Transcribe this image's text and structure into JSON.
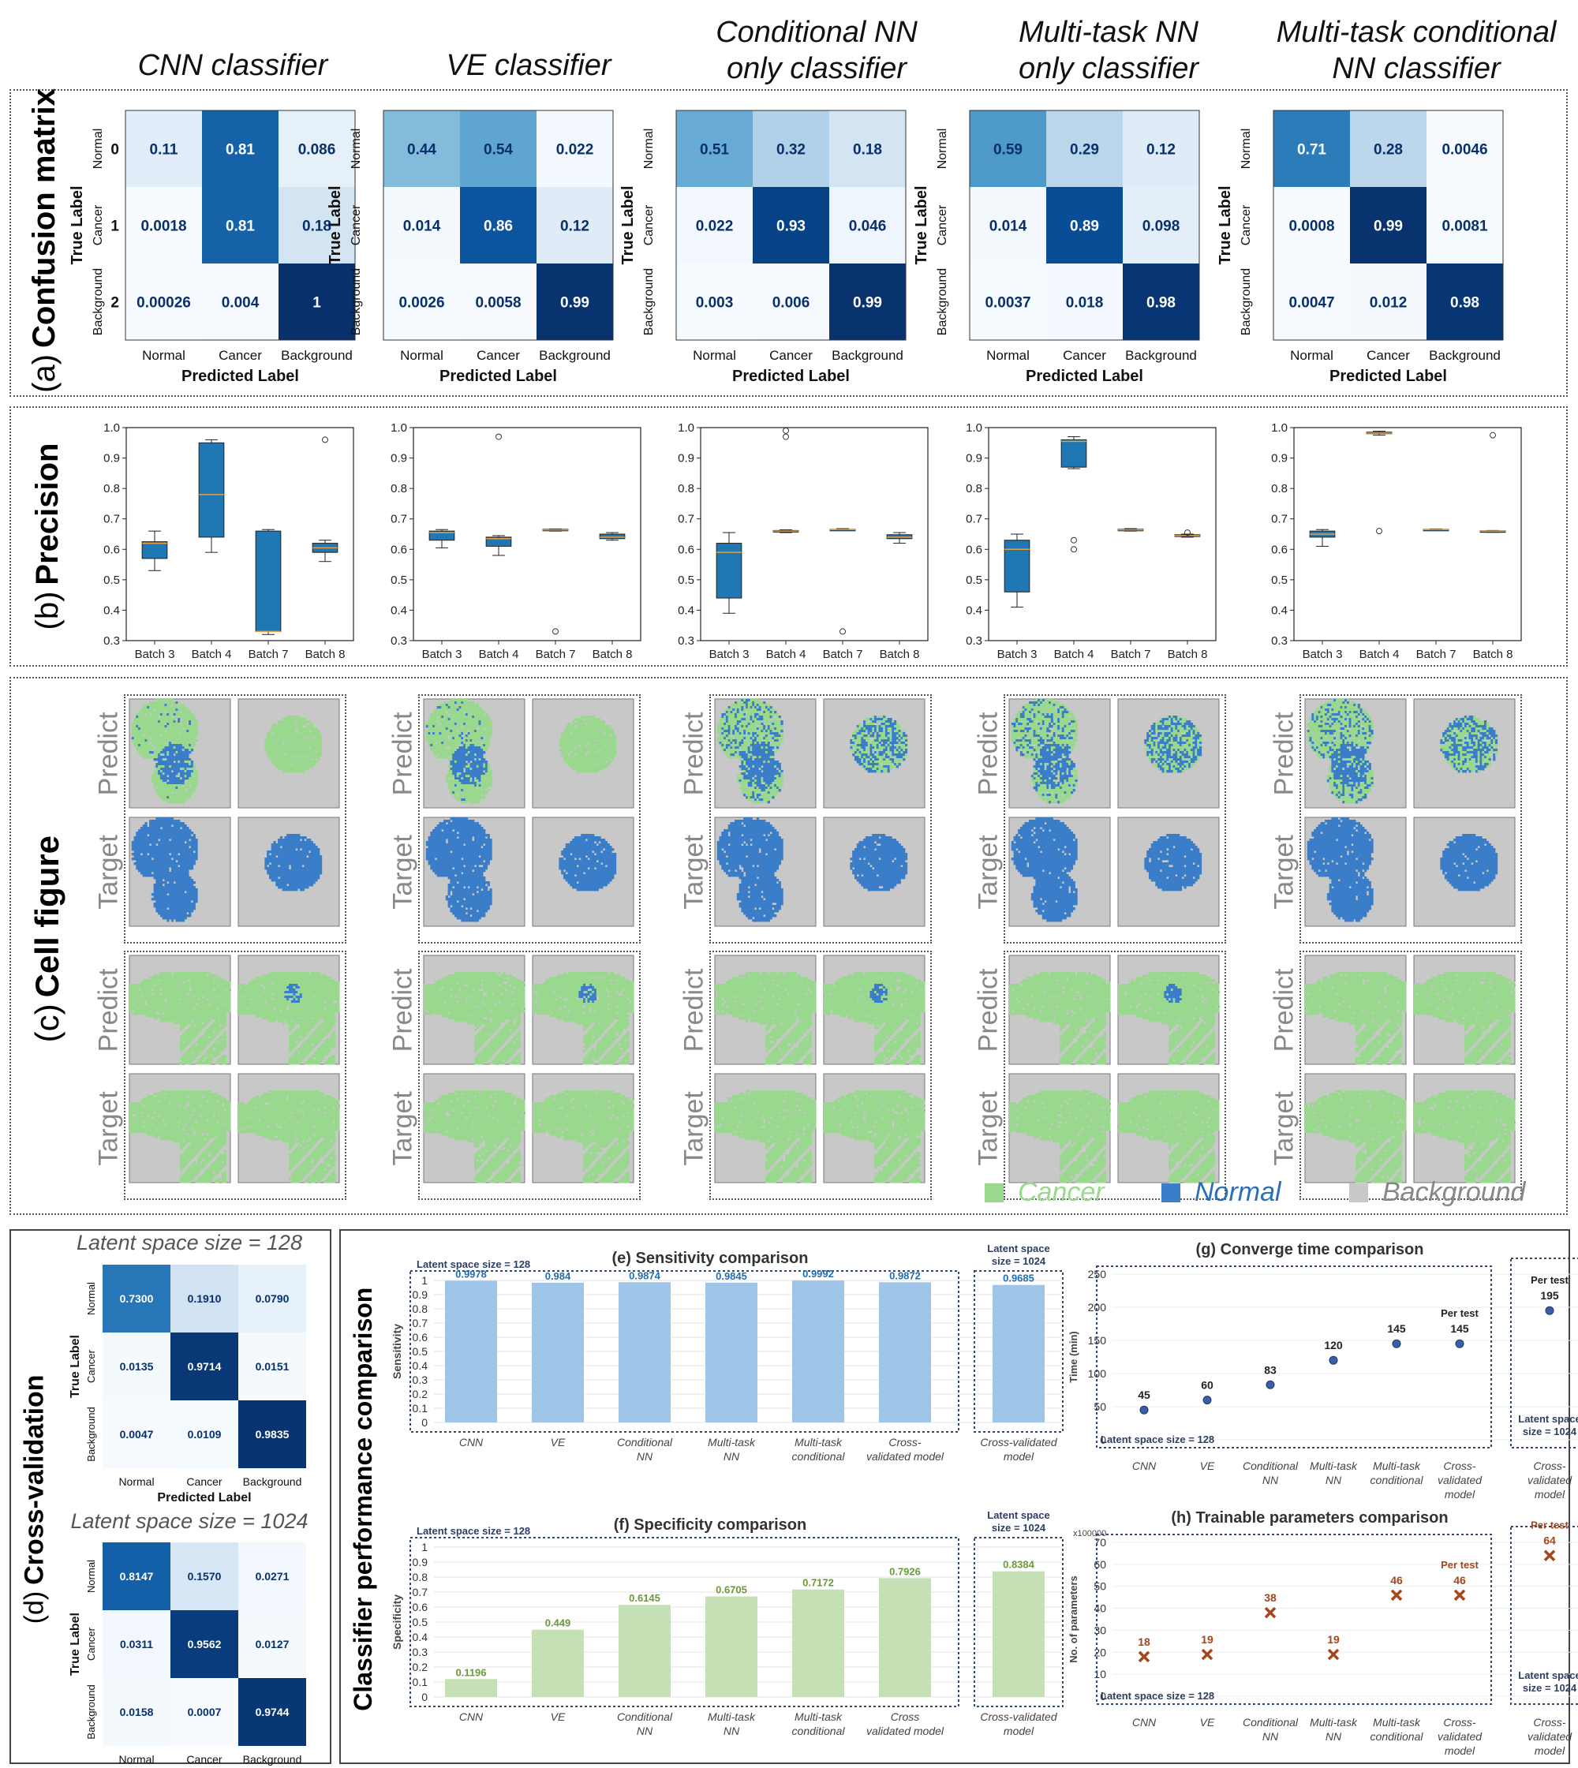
{
  "columns": [
    {
      "title_l1": "CNN classifier",
      "title_l2": ""
    },
    {
      "title_l1": "VE classifier",
      "title_l2": ""
    },
    {
      "title_l1": "Conditional NN",
      "title_l2": "only classifier"
    },
    {
      "title_l1": "Multi-task NN",
      "title_l2": "only classifier"
    },
    {
      "title_l1": "Multi-task conditional",
      "title_l2": "NN classifier"
    }
  ],
  "panel_a": {
    "letter": "(a)",
    "title": "Confusion matrix",
    "row_classes": [
      "Normal",
      "Cancer",
      "Background"
    ],
    "row_indices": [
      "0",
      "1",
      "2"
    ],
    "col_classes": [
      "Normal",
      "Cancer",
      "Background"
    ],
    "xlabel": "Predicted Label",
    "ylabel": "True Label",
    "matrices": [
      [
        [
          "0.11",
          "0.81",
          "0.086"
        ],
        [
          "0.0018",
          "0.81",
          "0.18"
        ],
        [
          "0.00026",
          "0.004",
          "1"
        ]
      ],
      [
        [
          "0.44",
          "0.54",
          "0.022"
        ],
        [
          "0.014",
          "0.86",
          "0.12"
        ],
        [
          "0.0026",
          "0.0058",
          "0.99"
        ]
      ],
      [
        [
          "0.51",
          "0.32",
          "0.18"
        ],
        [
          "0.022",
          "0.93",
          "0.046"
        ],
        [
          "0.003",
          "0.006",
          "0.99"
        ]
      ],
      [
        [
          "0.59",
          "0.29",
          "0.12"
        ],
        [
          "0.014",
          "0.89",
          "0.098"
        ],
        [
          "0.0037",
          "0.018",
          "0.98"
        ]
      ],
      [
        [
          "0.71",
          "0.28",
          "0.0046"
        ],
        [
          "0.0008",
          "0.99",
          "0.0081"
        ],
        [
          "0.0047",
          "0.012",
          "0.98"
        ]
      ]
    ]
  },
  "panel_b": {
    "letter": "(b)",
    "title": "Precision",
    "chart_data": {
      "type": "box",
      "categories": [
        "Batch 3",
        "Batch 4",
        "Batch 7",
        "Batch 8"
      ],
      "yticks": [
        "1.0",
        "0.9",
        "0.8",
        "0.7",
        "0.6",
        "0.5",
        "0.4",
        "0.3"
      ],
      "ylim": [
        0.3,
        1.0
      ],
      "models": [
        {
          "name": "CNN classifier",
          "boxes": [
            {
              "min": 0.53,
              "q1": 0.57,
              "median": 0.62,
              "q3": 0.625,
              "max": 0.66,
              "outliers": []
            },
            {
              "min": 0.59,
              "q1": 0.64,
              "median": 0.78,
              "q3": 0.95,
              "max": 0.96,
              "outliers": []
            },
            {
              "min": 0.32,
              "q1": 0.33,
              "median": 0.33,
              "q3": 0.66,
              "max": 0.665,
              "outliers": []
            },
            {
              "min": 0.56,
              "q1": 0.59,
              "median": 0.605,
              "q3": 0.62,
              "max": 0.63,
              "outliers": [
                0.96
              ]
            }
          ]
        },
        {
          "name": "VE classifier",
          "boxes": [
            {
              "min": 0.605,
              "q1": 0.63,
              "median": 0.655,
              "q3": 0.66,
              "max": 0.665,
              "outliers": []
            },
            {
              "min": 0.58,
              "q1": 0.61,
              "median": 0.635,
              "q3": 0.64,
              "max": 0.645,
              "outliers": [
                0.97
              ]
            },
            {
              "min": 0.66,
              "q1": 0.662,
              "median": 0.664,
              "q3": 0.666,
              "max": 0.667,
              "outliers": [
                0.33
              ]
            },
            {
              "min": 0.63,
              "q1": 0.635,
              "median": 0.64,
              "q3": 0.65,
              "max": 0.655,
              "outliers": []
            }
          ]
        },
        {
          "name": "Conditional NN only classifier",
          "boxes": [
            {
              "min": 0.39,
              "q1": 0.44,
              "median": 0.59,
              "q3": 0.62,
              "max": 0.655,
              "outliers": []
            },
            {
              "min": 0.655,
              "q1": 0.658,
              "median": 0.66,
              "q3": 0.662,
              "max": 0.664,
              "outliers": [
                0.97,
                0.99
              ]
            },
            {
              "min": 0.662,
              "q1": 0.664,
              "median": 0.665,
              "q3": 0.666,
              "max": 0.668,
              "outliers": [
                0.33
              ]
            },
            {
              "min": 0.62,
              "q1": 0.635,
              "median": 0.64,
              "q3": 0.648,
              "max": 0.655,
              "outliers": []
            }
          ]
        },
        {
          "name": "Multi-task NN only classifier",
          "boxes": [
            {
              "min": 0.41,
              "q1": 0.46,
              "median": 0.6,
              "q3": 0.63,
              "max": 0.65,
              "outliers": []
            },
            {
              "min": 0.865,
              "q1": 0.87,
              "median": 0.955,
              "q3": 0.96,
              "max": 0.97,
              "outliers": [
                0.6,
                0.63
              ]
            },
            {
              "min": 0.66,
              "q1": 0.662,
              "median": 0.664,
              "q3": 0.666,
              "max": 0.668,
              "outliers": []
            },
            {
              "min": 0.64,
              "q1": 0.642,
              "median": 0.645,
              "q3": 0.648,
              "max": 0.65,
              "outliers": [
                0.655
              ]
            }
          ]
        },
        {
          "name": "Multi-task conditional NN classifier",
          "boxes": [
            {
              "min": 0.61,
              "q1": 0.64,
              "median": 0.65,
              "q3": 0.66,
              "max": 0.665,
              "outliers": []
            },
            {
              "min": 0.975,
              "q1": 0.98,
              "median": 0.982,
              "q3": 0.985,
              "max": 0.988,
              "outliers": [
                0.66
              ]
            },
            {
              "min": 0.662,
              "q1": 0.664,
              "median": 0.665,
              "q3": 0.666,
              "max": 0.667,
              "outliers": []
            },
            {
              "min": 0.656,
              "q1": 0.658,
              "median": 0.66,
              "q3": 0.661,
              "max": 0.662,
              "outliers": [
                0.975
              ]
            }
          ]
        }
      ]
    }
  },
  "panel_c": {
    "letter": "(c)",
    "title": "Cell figure",
    "row_labels": [
      "Predict",
      "Target",
      "Predict",
      "Target"
    ],
    "legend": [
      {
        "label": "Cancer",
        "color": "#9ad88f"
      },
      {
        "label": "Normal",
        "color": "#3a7dc8"
      },
      {
        "label": "Background",
        "color": "#c8c8c8"
      }
    ]
  },
  "panel_d": {
    "letter": "(d)",
    "title": "Cross-validation",
    "captions": [
      "Latent space size = 128",
      "Latent space size = 1024"
    ],
    "row_classes": [
      "Normal",
      "Cancer",
      "Background"
    ],
    "col_classes": [
      "Normal",
      "Cancer",
      "Background"
    ],
    "xlabel": "Predicted Label",
    "ylabel": "True Label",
    "matrices": [
      [
        [
          "0.7300",
          "0.1910",
          "0.0790"
        ],
        [
          "0.0135",
          "0.9714",
          "0.0151"
        ],
        [
          "0.0047",
          "0.0109",
          "0.9835"
        ]
      ],
      [
        [
          "0.8147",
          "0.1570",
          "0.0271"
        ],
        [
          "0.0311",
          "0.9562",
          "0.0127"
        ],
        [
          "0.0158",
          "0.0007",
          "0.9744"
        ]
      ]
    ]
  },
  "panel_perf": {
    "side_title": "Classifier performance comparison",
    "group_labels": {
      "l128": "Latent space size = 128",
      "l1024_a": "Latent space",
      "l1024_b": "size = 1024",
      "per_test": "Per test"
    },
    "sensitivity": {
      "chart_data": {
        "type": "bar",
        "title": "(e) Sensitivity comparison",
        "ylabel": "Sensitivity",
        "ylim": [
          0,
          1
        ],
        "yticks": [
          "0",
          "0.1",
          "0.2",
          "0.3",
          "0.4",
          "0.5",
          "0.6",
          "0.7",
          "0.8",
          "0.9",
          "1"
        ],
        "categories": [
          [
            "CNN"
          ],
          [
            "VE"
          ],
          [
            "Conditional",
            "NN"
          ],
          [
            "Multi-task",
            "NN"
          ],
          [
            "Multi-task",
            "conditional"
          ],
          [
            "Cross-",
            "validated model"
          ],
          [
            "Cross-validated",
            "model"
          ]
        ],
        "values": [
          0.9978,
          0.984,
          0.9874,
          0.9845,
          0.9992,
          0.9872,
          0.9685
        ],
        "labels": [
          "0.9978",
          "0.984",
          "0.9874",
          "0.9845",
          "0.9992",
          "0.9872",
          "0.9685"
        ],
        "color": "#9fc5e8"
      }
    },
    "specificity": {
      "chart_data": {
        "type": "bar",
        "title": "(f) Specificity comparison",
        "ylabel": "Specificity",
        "ylim": [
          0,
          1
        ],
        "yticks": [
          "0",
          "0.1",
          "0.2",
          "0.3",
          "0.4",
          "0.5",
          "0.6",
          "0.7",
          "0.8",
          "0.9",
          "1"
        ],
        "categories": [
          [
            "CNN"
          ],
          [
            "VE"
          ],
          [
            "Conditional",
            "NN"
          ],
          [
            "Multi-task",
            "NN"
          ],
          [
            "Multi-task",
            "conditional"
          ],
          [
            "Cross",
            "validated model"
          ],
          [
            "Cross-validated",
            "model"
          ]
        ],
        "values": [
          0.1196,
          0.449,
          0.6145,
          0.6705,
          0.7172,
          0.7926,
          0.8384
        ],
        "labels": [
          "0.1196",
          "0.449",
          "0.6145",
          "0.6705",
          "0.7172",
          "0.7926",
          "0.8384"
        ],
        "color": "#c5e0b4"
      }
    },
    "converge": {
      "chart_data": {
        "type": "scatter",
        "title": "(g) Converge time  comparison",
        "ylabel": "Time (min)",
        "ylim": [
          0,
          250
        ],
        "yticks": [
          "0",
          "50",
          "100",
          "150",
          "200",
          "250"
        ],
        "categories": [
          [
            "CNN"
          ],
          [
            "VE"
          ],
          [
            "Conditional",
            "NN"
          ],
          [
            "Multi-task",
            "NN"
          ],
          [
            "Multi-task",
            "conditional"
          ],
          [
            "Cross-",
            "validated",
            "model"
          ],
          [
            "Cross-",
            "validated",
            "model"
          ]
        ],
        "values": [
          45,
          60,
          83,
          120,
          145,
          145,
          195
        ],
        "labels": [
          "45",
          "60",
          "83",
          "120",
          "145",
          "145",
          "195"
        ]
      }
    },
    "params": {
      "chart_data": {
        "type": "scatter",
        "title": "(h) Trainable parameters comparison",
        "ylabel": "No. of parameters",
        "scale_note": "x100000",
        "ylim": [
          0,
          70
        ],
        "yticks": [
          "0",
          "10",
          "20",
          "30",
          "40",
          "50",
          "60",
          "70"
        ],
        "categories": [
          [
            "CNN"
          ],
          [
            "VE"
          ],
          [
            "Conditional",
            "NN"
          ],
          [
            "Multi-task",
            "NN"
          ],
          [
            "Multi-task",
            "conditional"
          ],
          [
            "Cross-",
            "validated",
            "model"
          ],
          [
            "Cross-",
            "validated",
            "model"
          ]
        ],
        "values": [
          18,
          19,
          38,
          19,
          46,
          46,
          64
        ],
        "labels": [
          "18",
          "19",
          "38",
          "19",
          "46",
          "46",
          "64"
        ]
      }
    }
  }
}
